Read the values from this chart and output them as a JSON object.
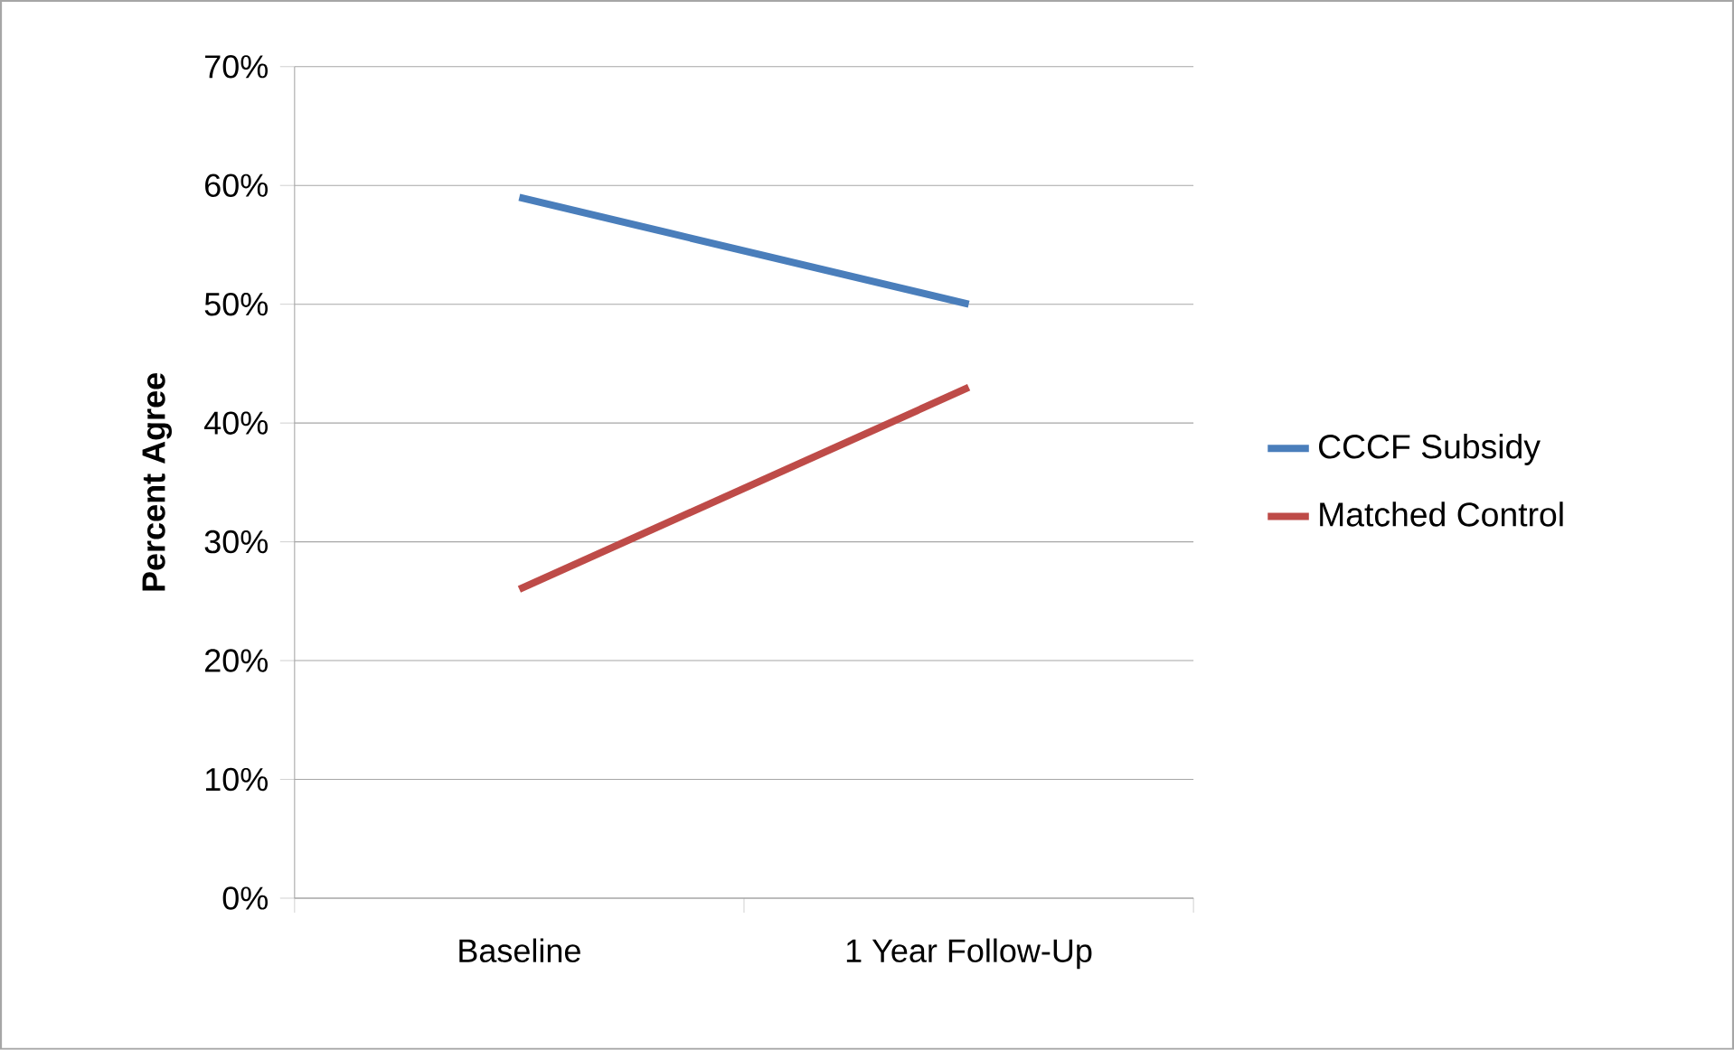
{
  "chart_data": {
    "type": "line",
    "ylabel": "Percent Agree",
    "categories": [
      "Baseline",
      "1 Year Follow-Up"
    ],
    "series": [
      {
        "name": "CCCF Subsidy",
        "color": "#4a7ebb",
        "values": [
          59,
          50
        ]
      },
      {
        "name": "Matched Control",
        "color": "#be4b48",
        "values": [
          26,
          43
        ]
      }
    ],
    "ylim": [
      0,
      70
    ],
    "yticks": [
      {
        "value": 0,
        "label": "0%"
      },
      {
        "value": 10,
        "label": "10%"
      },
      {
        "value": 20,
        "label": "20%"
      },
      {
        "value": 30,
        "label": "30%"
      },
      {
        "value": 40,
        "label": "40%"
      },
      {
        "value": 50,
        "label": "50%"
      },
      {
        "value": 60,
        "label": "60%"
      },
      {
        "value": 70,
        "label": "70%"
      }
    ],
    "grid": "y",
    "legend": "right",
    "marker": "none",
    "line_style": "solid"
  }
}
